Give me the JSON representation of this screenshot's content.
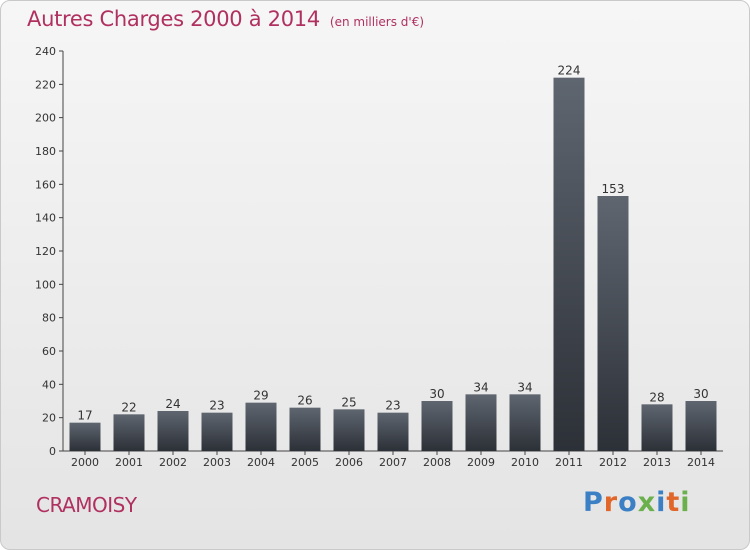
{
  "header": {
    "title": "Autres Charges 2000 à 2014",
    "subtitle": "(en milliers d'€)"
  },
  "footer": {
    "town": "CRAMOISY",
    "brand": "Proxiti",
    "brand_colors": [
      "#3b7fc4",
      "#e0662a",
      "#3b7fc4",
      "#6ab04c",
      "#3b7fc4",
      "#e0662a",
      "#6ab04c"
    ]
  },
  "colors": {
    "accent": "#b03060",
    "bar_top": "#5f6670",
    "bar_bottom": "#2c3037"
  },
  "chart_data": {
    "type": "bar",
    "categories": [
      "2000",
      "2001",
      "2002",
      "2003",
      "2004",
      "2005",
      "2006",
      "2007",
      "2008",
      "2009",
      "2010",
      "2011",
      "2012",
      "2013",
      "2014"
    ],
    "values": [
      17,
      22,
      24,
      23,
      29,
      26,
      25,
      23,
      30,
      34,
      34,
      224,
      153,
      28,
      30
    ],
    "title": "Autres Charges 2000 à 2014",
    "subtitle": "(en milliers d'€)",
    "xlabel": "",
    "ylabel": "",
    "ylim": [
      0,
      240
    ],
    "yticks": [
      0,
      20,
      40,
      60,
      80,
      100,
      120,
      140,
      160,
      180,
      200,
      220,
      240
    ],
    "grid": false,
    "legend": "none"
  }
}
